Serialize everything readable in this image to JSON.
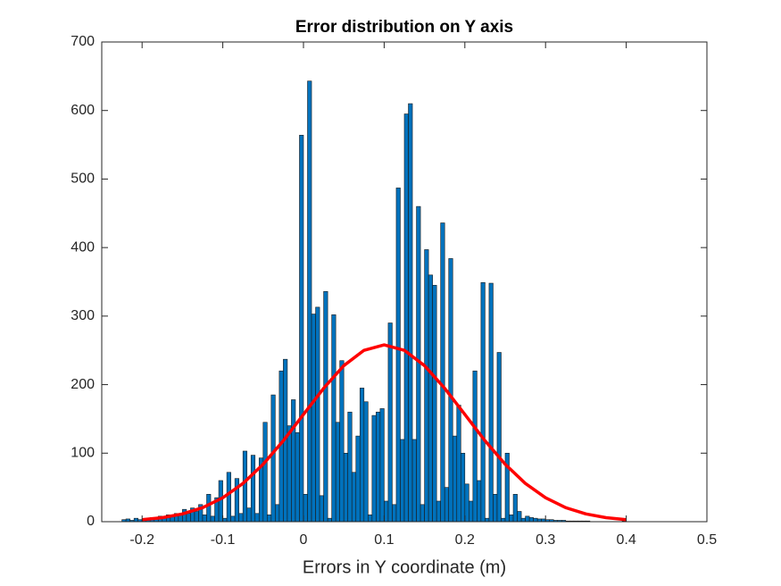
{
  "chart_data": {
    "type": "histogram",
    "title": "Error distribution on Y axis",
    "x_label": "Errors in Y coordinate (m)",
    "bins": [
      -0.225,
      -0.22,
      -0.215,
      -0.21,
      -0.205,
      -0.2,
      -0.195,
      -0.19,
      -0.185,
      -0.18,
      -0.175,
      -0.17,
      -0.165,
      -0.16,
      -0.155,
      -0.15,
      -0.145,
      -0.14,
      -0.135,
      -0.13,
      -0.125,
      -0.12,
      -0.115,
      -0.11,
      -0.105,
      -0.1,
      -0.095,
      -0.09,
      -0.085,
      -0.08,
      -0.075,
      -0.07,
      -0.065,
      -0.06,
      -0.055,
      -0.05,
      -0.045,
      -0.04,
      -0.035,
      -0.03,
      -0.025,
      -0.02,
      -0.015,
      -0.01,
      -0.005,
      0,
      0.005,
      0.01,
      0.015,
      0.02,
      0.025,
      0.03,
      0.035,
      0.04,
      0.045,
      0.05,
      0.055,
      0.06,
      0.065,
      0.07,
      0.075,
      0.08,
      0.085,
      0.09,
      0.095,
      0.1,
      0.105,
      0.11,
      0.115,
      0.12,
      0.125,
      0.13,
      0.135,
      0.14,
      0.145,
      0.15,
      0.155,
      0.16,
      0.165,
      0.17,
      0.175,
      0.18,
      0.185,
      0.19,
      0.195,
      0.2,
      0.205,
      0.21,
      0.215,
      0.22,
      0.225,
      0.23,
      0.235,
      0.24,
      0.245,
      0.25,
      0.255,
      0.26,
      0.265,
      0.27,
      0.275,
      0.28,
      0.285,
      0.29,
      0.295,
      0.3,
      0.305,
      0.31,
      0.315,
      0.32,
      0.325,
      0.33,
      0.335,
      0.34,
      0.345,
      0.35,
      0.355,
      0.36,
      0.365,
      0.37,
      0.375,
      0.38,
      0.385,
      0.39,
      0.395,
      0.4
    ],
    "values": [
      3,
      4,
      2,
      5,
      3,
      4,
      5,
      6,
      5,
      8,
      7,
      10,
      9,
      12,
      10,
      18,
      12,
      20,
      15,
      25,
      10,
      40,
      8,
      35,
      60,
      5,
      72,
      8,
      63,
      12,
      103,
      20,
      97,
      12,
      93,
      145,
      10,
      185,
      25,
      220,
      237,
      140,
      178,
      130,
      564,
      40,
      643,
      303,
      313,
      38,
      336,
      5,
      302,
      145,
      235,
      100,
      160,
      72,
      125,
      195,
      175,
      10,
      155,
      160,
      165,
      30,
      290,
      25,
      487,
      120,
      595,
      610,
      120,
      460,
      25,
      397,
      360,
      345,
      30,
      436,
      50,
      384,
      125,
      170,
      100,
      55,
      30,
      220,
      60,
      349,
      5,
      348,
      40,
      247,
      5,
      100,
      10,
      40,
      15,
      5,
      8,
      6,
      5,
      4,
      4,
      3,
      3,
      2,
      2,
      2,
      1,
      1,
      1,
      1,
      1,
      1,
      0,
      0,
      0,
      0,
      0,
      0,
      0,
      0,
      1
    ],
    "color": "#0072BD",
    "edge_color": "#1a1a1a",
    "fit": {
      "color": "#FF0000",
      "x": [
        -0.2,
        -0.175,
        -0.15,
        -0.125,
        -0.1,
        -0.075,
        -0.05,
        -0.025,
        0,
        0.025,
        0.05,
        0.075,
        0.1,
        0.125,
        0.15,
        0.175,
        0.2,
        0.225,
        0.25,
        0.275,
        0.3,
        0.325,
        0.35,
        0.375,
        0.4
      ],
      "values": [
        2.9,
        5.9,
        11.3,
        20.5,
        34.9,
        55.8,
        83.8,
        118.1,
        156.5,
        194.7,
        227.7,
        250.1,
        258,
        250.1,
        227.7,
        194.7,
        156.5,
        118.1,
        83.8,
        55.8,
        34.9,
        20.5,
        11.3,
        5.9,
        2.9
      ]
    },
    "xlim": [
      -0.25,
      0.5
    ],
    "xticks": [
      -0.2,
      -0.1,
      0,
      0.1,
      0.2,
      0.3,
      0.4,
      0.5
    ],
    "ylim": [
      0,
      700
    ],
    "yticks": [
      0,
      100,
      200,
      300,
      400,
      500,
      600,
      700
    ],
    "grid": false
  }
}
